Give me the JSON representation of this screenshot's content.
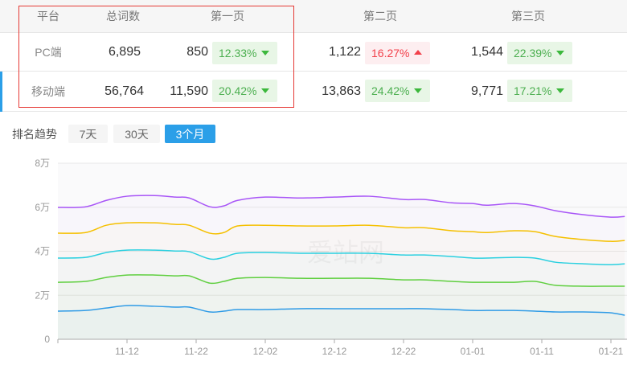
{
  "table": {
    "headers": [
      "平台",
      "总词数",
      "第一页",
      "第二页",
      "第三页"
    ],
    "rows": [
      {
        "platform": "PC端",
        "total": "6,895",
        "p1": "850",
        "p1_pct": "12.33%",
        "p1_dir": "down",
        "p2": "1,122",
        "p2_pct": "16.27%",
        "p2_dir": "up",
        "p3": "1,544",
        "p3_pct": "22.39%",
        "p3_dir": "down"
      },
      {
        "platform": "移动端",
        "total": "56,764",
        "p1": "11,590",
        "p1_pct": "20.42%",
        "p1_dir": "down",
        "p2": "13,863",
        "p2_pct": "24.42%",
        "p2_dir": "down",
        "p3": "9,771",
        "p3_pct": "17.21%",
        "p3_dir": "down"
      }
    ],
    "selected_row": 1
  },
  "trend": {
    "label": "排名趋势",
    "ranges": [
      "7天",
      "30天",
      "3个月"
    ],
    "active_range": "3个月"
  },
  "colors": {
    "accent": "#2b9fe8",
    "up": "#f2404a",
    "down": "#3cb83c"
  },
  "chart_data": {
    "type": "line",
    "y_unit": "万",
    "ylim": [
      0,
      8
    ],
    "yticks": [
      "0",
      "2万",
      "4万",
      "6万",
      "8万"
    ],
    "xticks": [
      "11-12",
      "11-22",
      "12-02",
      "12-12",
      "12-22",
      "01-01",
      "01-11",
      "01-21"
    ],
    "x": [
      "11-02",
      "11-06",
      "11-09",
      "11-12",
      "11-16",
      "11-19",
      "11-21",
      "11-24",
      "11-26",
      "11-28",
      "12-02",
      "12-07",
      "12-12",
      "12-17",
      "12-22",
      "12-25",
      "12-29",
      "01-01",
      "01-03",
      "01-07",
      "01-10",
      "01-13",
      "01-17",
      "01-21",
      "01-23"
    ],
    "grid": true,
    "watermark": "爱站网",
    "series": [
      {
        "color": "#a855f7",
        "values": [
          5.99,
          6.02,
          6.31,
          6.5,
          6.53,
          6.46,
          6.42,
          6.02,
          6.06,
          6.31,
          6.46,
          6.42,
          6.46,
          6.5,
          6.35,
          6.35,
          6.2,
          6.17,
          6.09,
          6.17,
          6.06,
          5.84,
          5.66,
          5.55,
          5.58
        ]
      },
      {
        "color": "#f5c000",
        "values": [
          4.82,
          4.85,
          5.18,
          5.29,
          5.29,
          5.22,
          5.18,
          4.82,
          4.85,
          5.15,
          5.18,
          5.15,
          5.15,
          5.18,
          5.07,
          5.07,
          4.93,
          4.89,
          4.85,
          4.93,
          4.89,
          4.67,
          4.53,
          4.45,
          4.49
        ]
      },
      {
        "color": "#2bd0e0",
        "values": [
          3.69,
          3.72,
          3.94,
          4.05,
          4.05,
          4.01,
          3.98,
          3.65,
          3.72,
          3.91,
          3.94,
          3.91,
          3.91,
          3.91,
          3.83,
          3.83,
          3.76,
          3.69,
          3.69,
          3.72,
          3.69,
          3.5,
          3.43,
          3.39,
          3.43
        ]
      },
      {
        "color": "#5fcf3f",
        "values": [
          2.59,
          2.63,
          2.81,
          2.92,
          2.92,
          2.88,
          2.88,
          2.55,
          2.63,
          2.77,
          2.81,
          2.77,
          2.77,
          2.77,
          2.7,
          2.7,
          2.63,
          2.59,
          2.59,
          2.59,
          2.63,
          2.45,
          2.41,
          2.41,
          2.41
        ]
      },
      {
        "color": "#2f9be6",
        "values": [
          1.28,
          1.31,
          1.42,
          1.53,
          1.5,
          1.46,
          1.46,
          1.24,
          1.28,
          1.35,
          1.35,
          1.39,
          1.39,
          1.39,
          1.39,
          1.39,
          1.35,
          1.31,
          1.31,
          1.31,
          1.28,
          1.24,
          1.24,
          1.2,
          1.09
        ]
      }
    ]
  }
}
